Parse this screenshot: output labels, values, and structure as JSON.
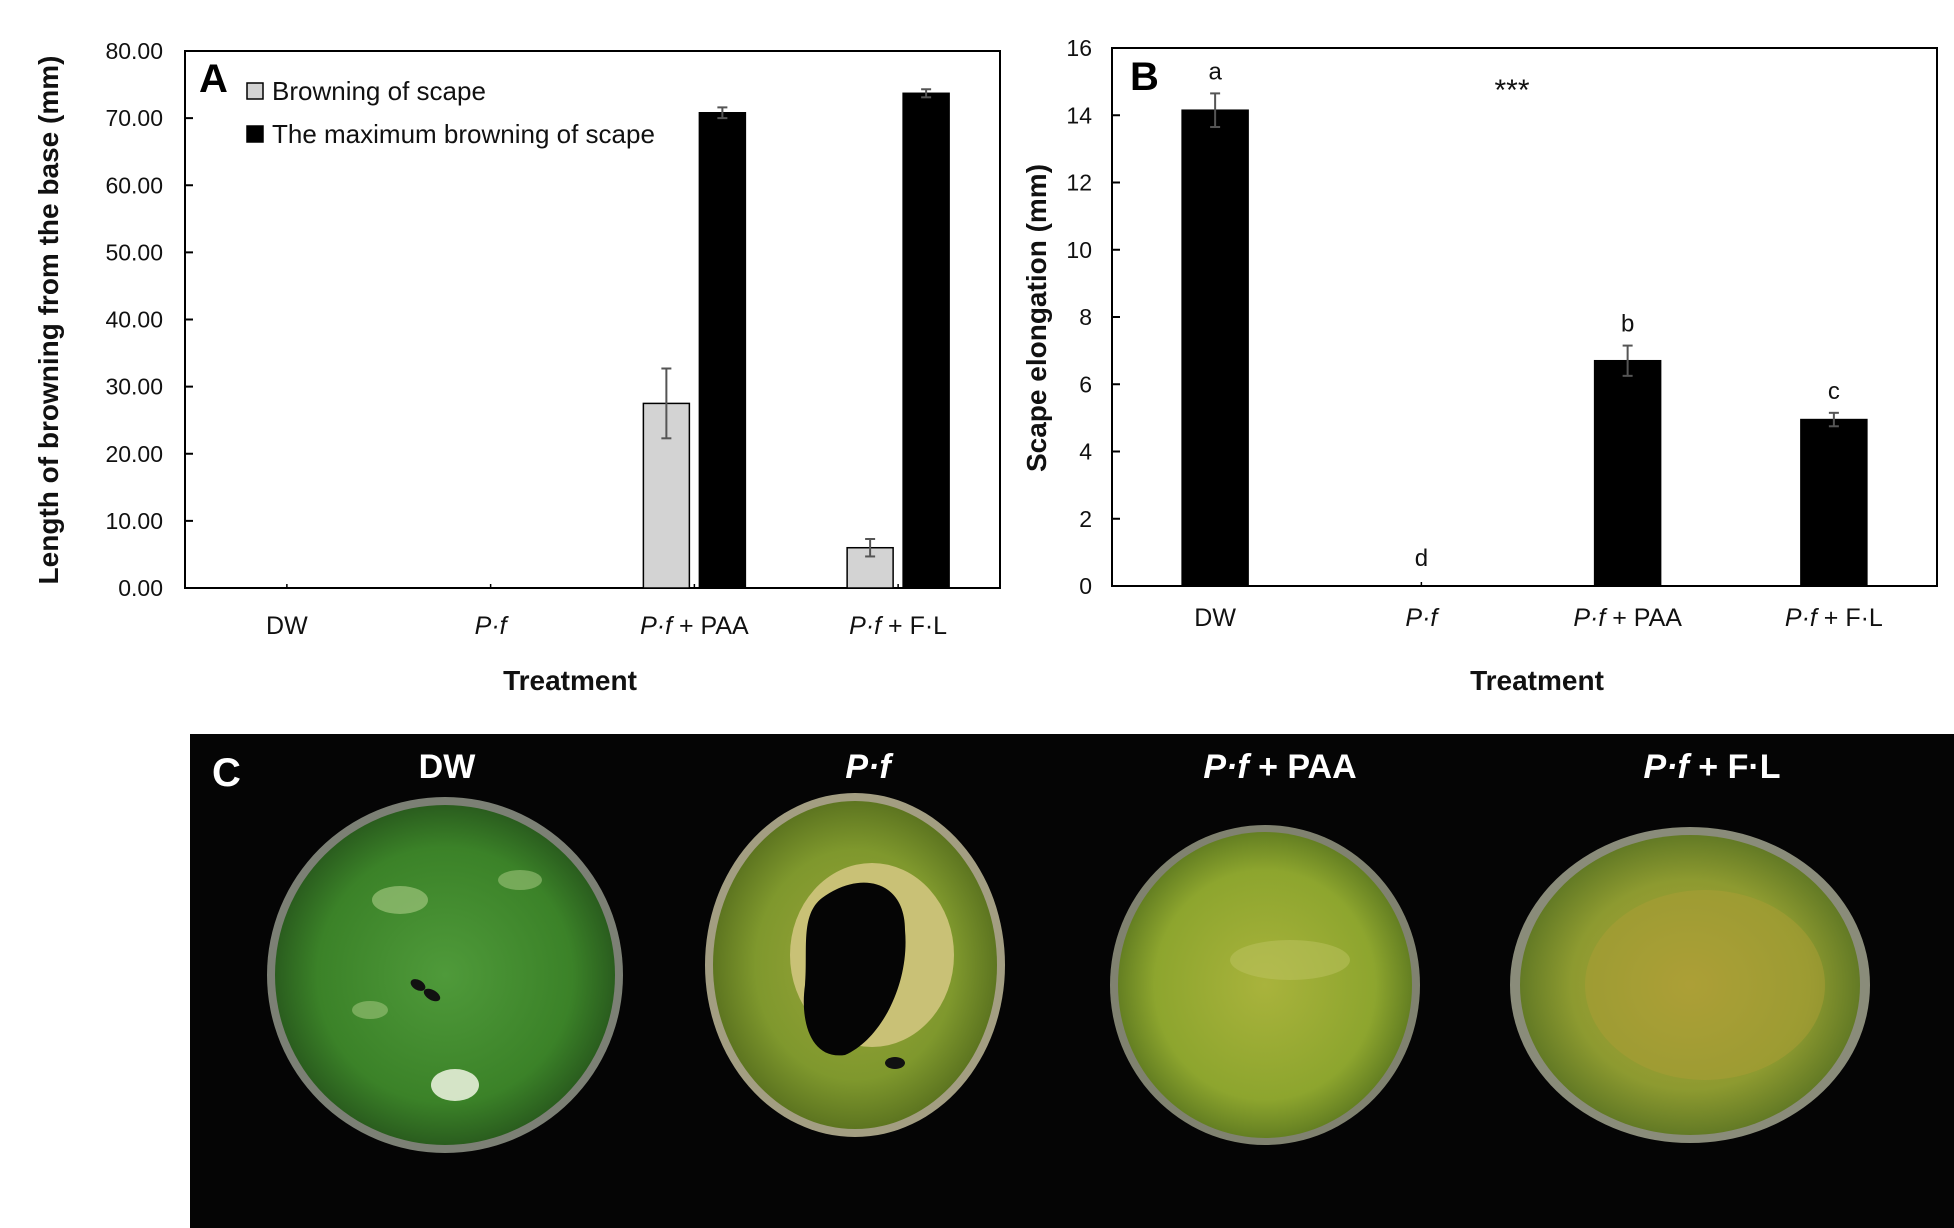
{
  "chart_data": [
    {
      "panel": "A",
      "type": "bar",
      "xlabel": "Treatment",
      "ylabel": "Length of browning from the base (mm)",
      "ylim": [
        0,
        80
      ],
      "yticks": [
        "0.00",
        "10.00",
        "20.00",
        "30.00",
        "40.00",
        "50.00",
        "60.00",
        "70.00",
        "80.00"
      ],
      "categories": [
        {
          "prefix": "",
          "italic": "",
          "suffix": "DW"
        },
        {
          "prefix": "",
          "italic": "P·f",
          "suffix": ""
        },
        {
          "prefix": "",
          "italic": "P·f",
          "suffix": " + PAA"
        },
        {
          "prefix": "",
          "italic": "P·f",
          "suffix": " + F·L"
        }
      ],
      "legend_position": "top-left",
      "series": [
        {
          "name": "Browning of scape",
          "color": "#d3d3d3",
          "values": [
            0,
            0,
            27.5,
            6.0
          ],
          "errors": [
            0,
            0,
            5.2,
            1.3
          ]
        },
        {
          "name": "The maximum browning of scape",
          "color": "#000000",
          "values": [
            0,
            0,
            70.8,
            73.7
          ],
          "errors": [
            0,
            0,
            0.8,
            0.6
          ]
        }
      ]
    },
    {
      "panel": "B",
      "type": "bar",
      "xlabel": "Treatment",
      "ylabel": "Scape elongation (mm)",
      "ylim": [
        0,
        16
      ],
      "yticks": [
        "0",
        "2",
        "4",
        "6",
        "8",
        "10",
        "12",
        "14",
        "16"
      ],
      "categories": [
        {
          "prefix": "",
          "italic": "",
          "suffix": "DW"
        },
        {
          "prefix": "",
          "italic": "P·f",
          "suffix": ""
        },
        {
          "prefix": "",
          "italic": "P·f",
          "suffix": " + PAA"
        },
        {
          "prefix": "",
          "italic": "P·f",
          "suffix": " + F·L"
        }
      ],
      "annotation": "***",
      "series": [
        {
          "color": "#000000",
          "values": [
            14.15,
            0,
            6.7,
            4.95
          ],
          "errors": [
            0.5,
            0,
            0.45,
            0.2
          ],
          "letters": [
            "a",
            "d",
            "b",
            "c"
          ]
        }
      ]
    }
  ],
  "photo_panel": {
    "letter": "C",
    "labels": [
      {
        "italic": "",
        "suffix": "DW"
      },
      {
        "italic": "P·f",
        "suffix": ""
      },
      {
        "italic": "P·f",
        "suffix": " + PAA"
      },
      {
        "italic": "P·f",
        "suffix": " + F·L"
      }
    ]
  }
}
